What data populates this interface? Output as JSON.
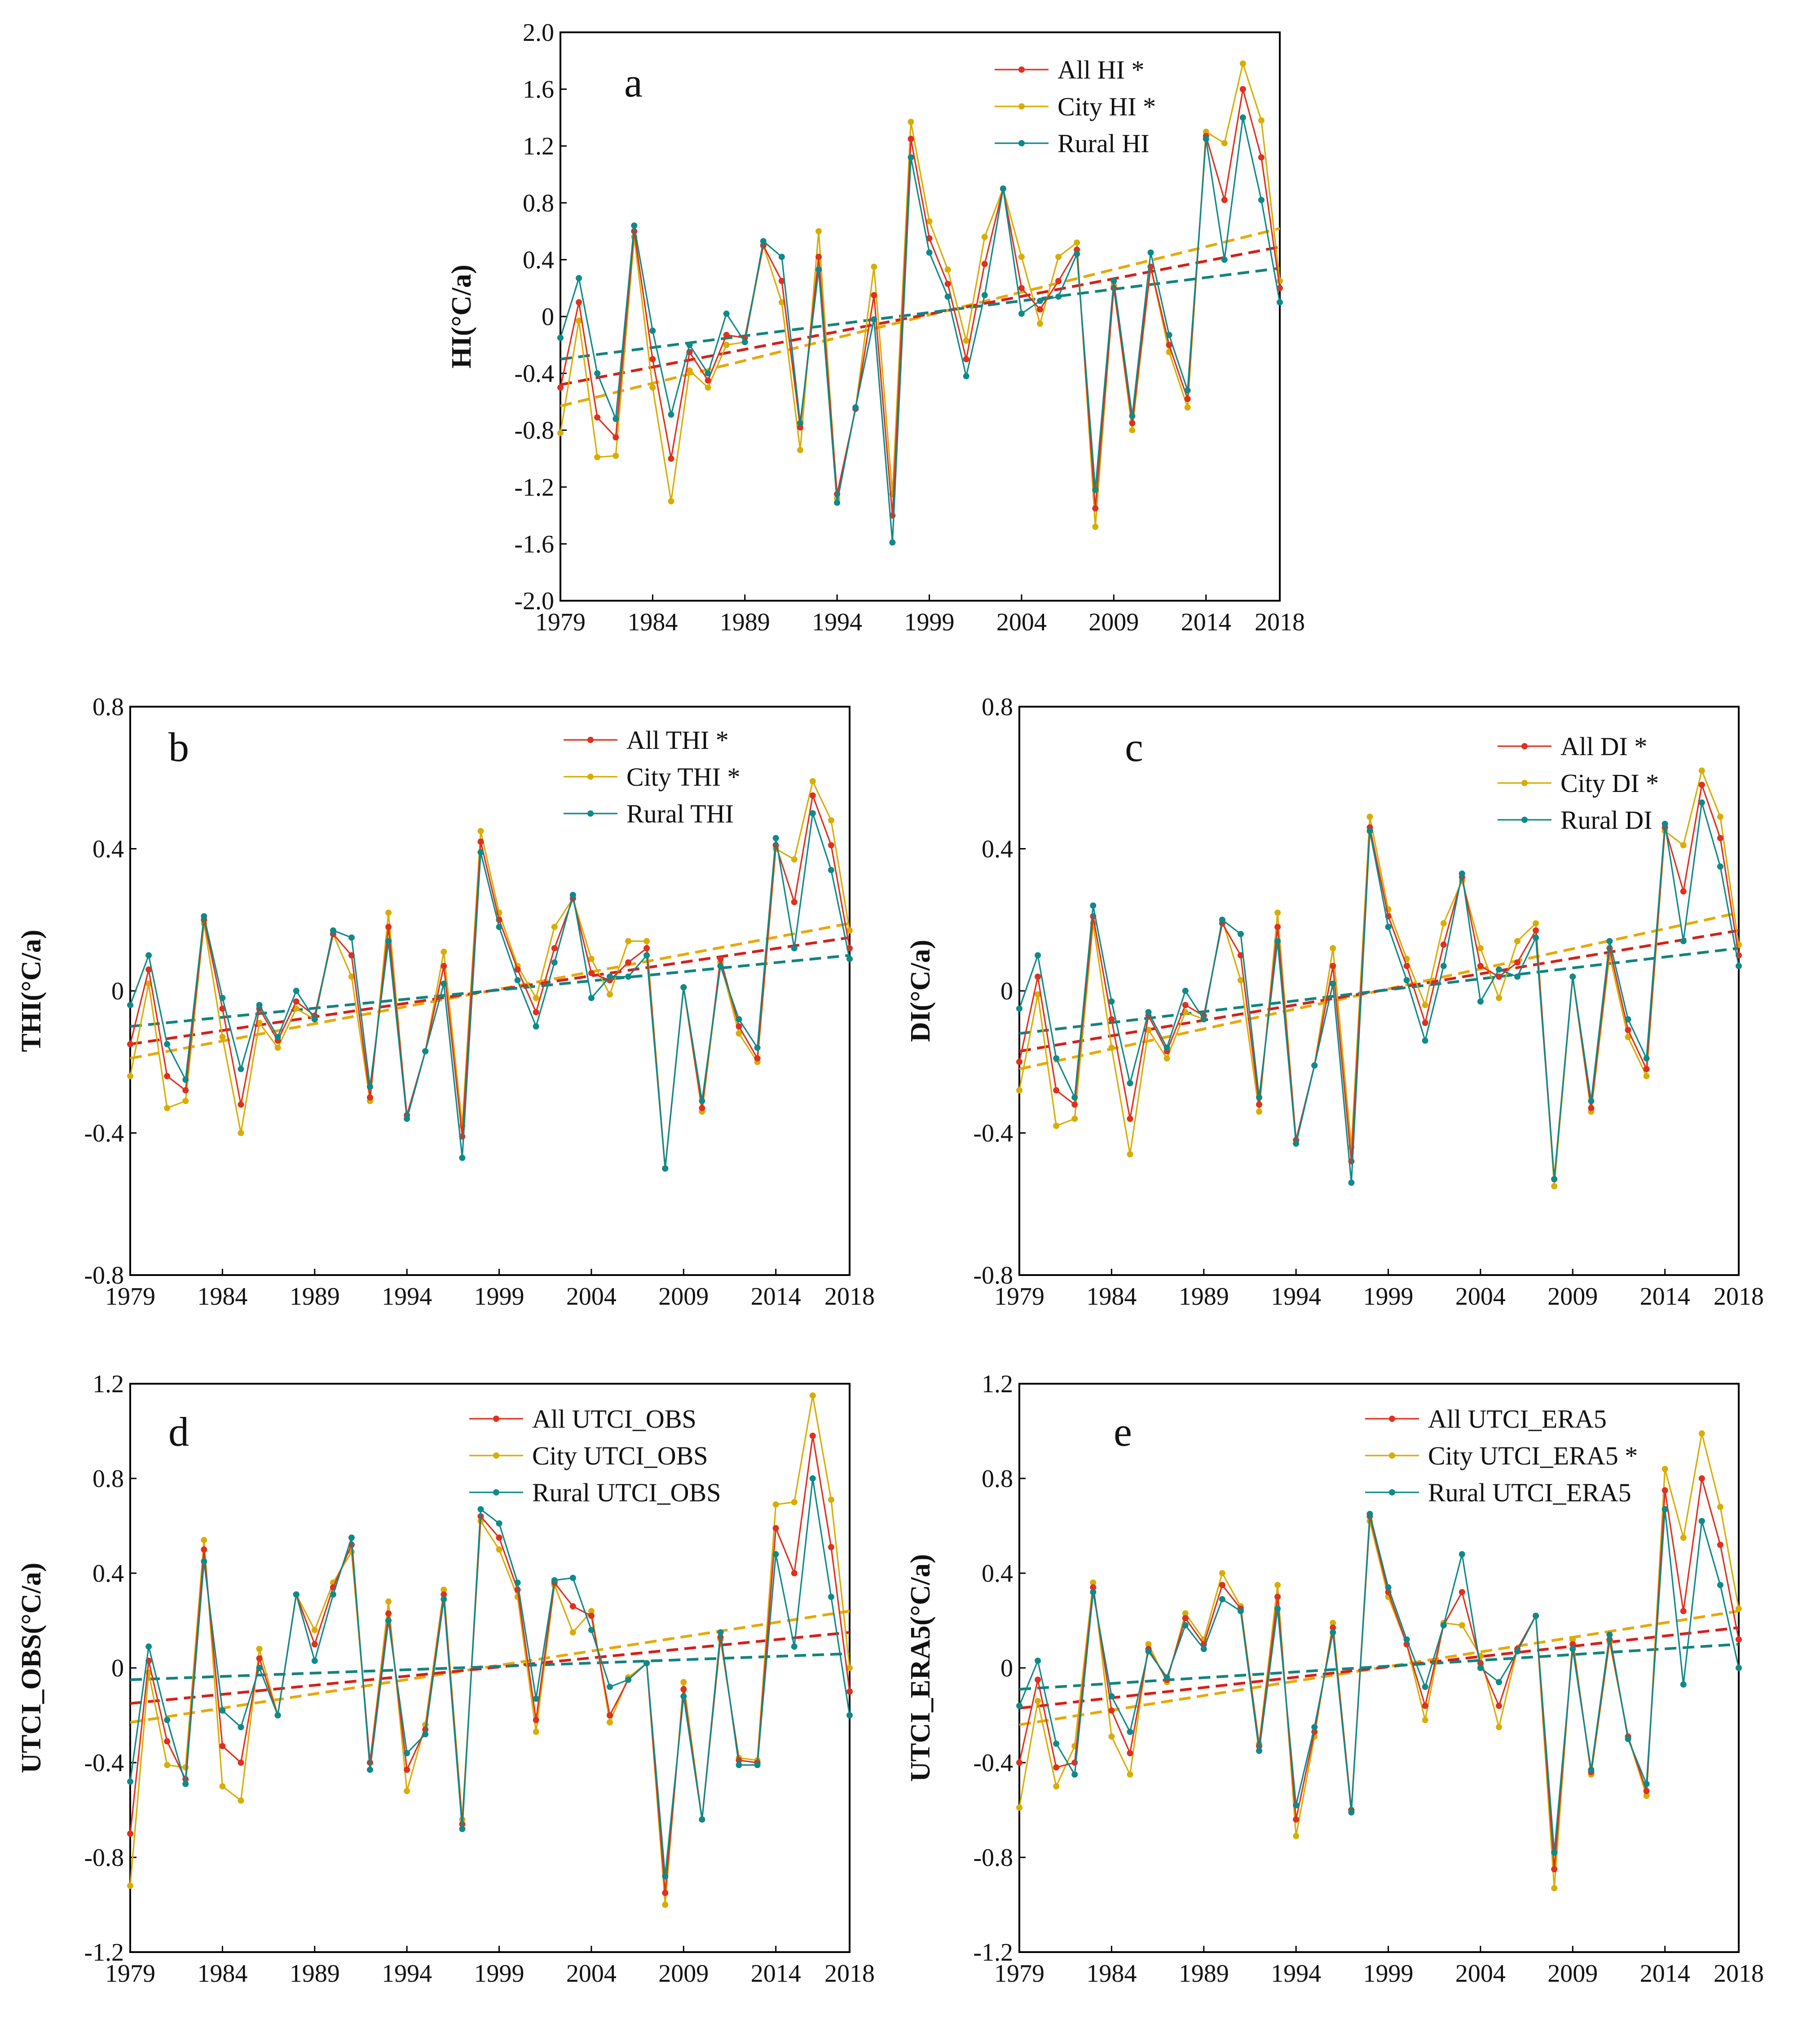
{
  "colors": {
    "all": "#e0301e",
    "city": "#d9ad00",
    "rural": "#0e8a8a",
    "frame": "#000000",
    "allTrend": "#d4201a",
    "cityTrend": "#e8a800",
    "ruralTrend": "#11847f"
  },
  "x_ticks": [
    "1979",
    "1984",
    "1989",
    "1994",
    "1999",
    "2004",
    "2009",
    "2014",
    "2018"
  ],
  "chart_data": [
    {
      "id": "a",
      "type": "line",
      "panel_label": "a",
      "ylabel": "HI(°C/a)",
      "x": [
        1979,
        1980,
        1981,
        1982,
        1983,
        1984,
        1985,
        1986,
        1987,
        1988,
        1989,
        1990,
        1991,
        1992,
        1993,
        1994,
        1995,
        1996,
        1997,
        1998,
        1999,
        2000,
        2001,
        2002,
        2003,
        2004,
        2005,
        2006,
        2007,
        2008,
        2009,
        2010,
        2011,
        2012,
        2013,
        2014,
        2015,
        2016,
        2017,
        2018
      ],
      "ylim": [
        -2.0,
        2.0
      ],
      "yticks": [
        "2.0",
        "1.6",
        "1.2",
        "0.8",
        "0.4",
        "0",
        "-0.4",
        "-0.8",
        "-1.2",
        "-1.6",
        "-2.0"
      ],
      "series": [
        {
          "name": "All HI *",
          "key": "all",
          "values": [
            -0.5,
            0.1,
            -0.71,
            -0.85,
            0.6,
            -0.3,
            -1.0,
            -0.25,
            -0.45,
            -0.13,
            -0.15,
            0.5,
            0.25,
            -0.78,
            0.42,
            -1.25,
            -0.65,
            0.15,
            -1.4,
            1.25,
            0.55,
            0.23,
            -0.3,
            0.37,
            0.9,
            0.2,
            0.05,
            0.25,
            0.47,
            -1.35,
            0.2,
            -0.75,
            0.35,
            -0.2,
            -0.58,
            1.27,
            0.82,
            1.6,
            1.12,
            0.2
          ],
          "trend": [
            -0.48,
            0.49
          ]
        },
        {
          "name": "City HI *",
          "key": "city",
          "values": [
            -0.82,
            -0.03,
            -0.99,
            -0.98,
            0.56,
            -0.5,
            -1.3,
            -0.38,
            -0.5,
            -0.2,
            -0.18,
            0.5,
            0.1,
            -0.94,
            0.6,
            -1.28,
            -0.65,
            0.35,
            -1.25,
            1.37,
            0.67,
            0.33,
            -0.17,
            0.56,
            0.9,
            0.42,
            -0.05,
            0.42,
            0.52,
            -1.48,
            0.22,
            -0.8,
            0.35,
            -0.25,
            -0.64,
            1.3,
            1.22,
            1.78,
            1.38,
            0.25
          ],
          "trend": [
            -0.63,
            0.62
          ]
        },
        {
          "name": "Rural HI",
          "key": "rural",
          "values": [
            -0.15,
            0.27,
            -0.4,
            -0.72,
            0.64,
            -0.1,
            -0.69,
            -0.2,
            -0.4,
            0.02,
            -0.18,
            0.53,
            0.42,
            -0.75,
            0.33,
            -1.31,
            -0.64,
            -0.02,
            -1.59,
            1.12,
            0.45,
            0.14,
            -0.42,
            0.15,
            0.9,
            0.02,
            0.11,
            0.14,
            0.44,
            -1.22,
            0.25,
            -0.7,
            0.45,
            -0.13,
            -0.52,
            1.25,
            0.4,
            1.4,
            0.82,
            0.1
          ],
          "trend": [
            -0.3,
            0.34
          ]
        }
      ]
    },
    {
      "id": "b",
      "type": "line",
      "panel_label": "b",
      "ylabel": "THI(°C/a)",
      "x": [
        1979,
        1980,
        1981,
        1982,
        1983,
        1984,
        1985,
        1986,
        1987,
        1988,
        1989,
        1990,
        1991,
        1992,
        1993,
        1994,
        1995,
        1996,
        1997,
        1998,
        1999,
        2000,
        2001,
        2002,
        2003,
        2004,
        2005,
        2006,
        2007,
        2008,
        2009,
        2010,
        2011,
        2012,
        2013,
        2014,
        2015,
        2016,
        2017,
        2018
      ],
      "ylim": [
        -0.8,
        0.8
      ],
      "yticks": [
        "0.8",
        "0.4",
        "0",
        "-0.4",
        "-0.8"
      ],
      "series": [
        {
          "name": "All THI *",
          "key": "all",
          "values": [
            -0.15,
            0.06,
            -0.24,
            -0.28,
            0.2,
            -0.05,
            -0.32,
            -0.05,
            -0.14,
            -0.03,
            -0.07,
            0.16,
            0.1,
            -0.3,
            0.18,
            -0.35,
            -0.17,
            0.07,
            -0.41,
            0.42,
            0.2,
            0.06,
            -0.06,
            0.12,
            0.26,
            0.05,
            0.03,
            0.08,
            0.12,
            -0.5,
            0.01,
            -0.33,
            0.09,
            -0.1,
            -0.19,
            0.41,
            0.25,
            0.55,
            0.41,
            0.12
          ],
          "trend": [
            -0.15,
            0.15
          ]
        },
        {
          "name": "City THI *",
          "key": "city",
          "values": [
            -0.24,
            0.02,
            -0.33,
            -0.31,
            0.19,
            -0.13,
            -0.4,
            -0.09,
            -0.16,
            -0.05,
            -0.08,
            0.16,
            0.04,
            -0.31,
            0.22,
            -0.36,
            -0.17,
            0.11,
            -0.38,
            0.45,
            0.22,
            0.07,
            -0.02,
            0.18,
            0.26,
            0.09,
            -0.01,
            0.14,
            0.14,
            -0.5,
            0.01,
            -0.34,
            0.08,
            -0.12,
            -0.2,
            0.4,
            0.37,
            0.59,
            0.48,
            0.17
          ],
          "trend": [
            -0.19,
            0.19
          ]
        },
        {
          "name": "Rural THI",
          "key": "rural",
          "values": [
            -0.04,
            0.1,
            -0.15,
            -0.25,
            0.21,
            -0.02,
            -0.22,
            -0.04,
            -0.13,
            0.0,
            -0.08,
            0.17,
            0.15,
            -0.27,
            0.14,
            -0.36,
            -0.17,
            0.02,
            -0.47,
            0.39,
            0.18,
            0.03,
            -0.1,
            0.08,
            0.27,
            -0.02,
            0.04,
            0.04,
            0.1,
            -0.5,
            0.01,
            -0.31,
            0.07,
            -0.08,
            -0.16,
            0.43,
            0.12,
            0.5,
            0.34,
            0.09
          ],
          "trend": [
            -0.1,
            0.1
          ]
        }
      ]
    },
    {
      "id": "c",
      "type": "line",
      "panel_label": "c",
      "ylabel": "DI(°C/a)",
      "x": [
        1979,
        1980,
        1981,
        1982,
        1983,
        1984,
        1985,
        1986,
        1987,
        1988,
        1989,
        1990,
        1991,
        1992,
        1993,
        1994,
        1995,
        1996,
        1997,
        1998,
        1999,
        2000,
        2001,
        2002,
        2003,
        2004,
        2005,
        2006,
        2007,
        2008,
        2009,
        2010,
        2011,
        2012,
        2013,
        2014,
        2015,
        2016,
        2017,
        2018
      ],
      "ylim": [
        -0.8,
        0.8
      ],
      "yticks": [
        "0.8",
        "0.4",
        "0",
        "-0.4",
        "-0.8"
      ],
      "series": [
        {
          "name": "All DI *",
          "key": "all",
          "values": [
            -0.2,
            0.04,
            -0.28,
            -0.32,
            0.21,
            -0.08,
            -0.36,
            -0.07,
            -0.17,
            -0.04,
            -0.07,
            0.19,
            0.1,
            -0.32,
            0.18,
            -0.42,
            -0.21,
            0.07,
            -0.48,
            0.46,
            0.21,
            0.07,
            -0.09,
            0.13,
            0.32,
            0.07,
            0.04,
            0.08,
            0.17,
            -0.53,
            0.04,
            -0.33,
            0.12,
            -0.11,
            -0.22,
            0.46,
            0.28,
            0.58,
            0.43,
            0.1
          ],
          "trend": [
            -0.17,
            0.17
          ]
        },
        {
          "name": "City DI *",
          "key": "city",
          "values": [
            -0.28,
            -0.01,
            -0.38,
            -0.36,
            0.19,
            -0.16,
            -0.46,
            -0.11,
            -0.19,
            -0.06,
            -0.08,
            0.2,
            0.03,
            -0.34,
            0.22,
            -0.42,
            -0.21,
            0.12,
            -0.44,
            0.49,
            0.23,
            0.09,
            -0.04,
            0.19,
            0.31,
            0.12,
            -0.02,
            0.14,
            0.19,
            -0.55,
            0.04,
            -0.34,
            0.1,
            -0.13,
            -0.24,
            0.45,
            0.41,
            0.62,
            0.49,
            0.13
          ],
          "trend": [
            -0.22,
            0.22
          ]
        },
        {
          "name": "Rural DI",
          "key": "rural",
          "values": [
            -0.05,
            0.1,
            -0.19,
            -0.3,
            0.24,
            -0.03,
            -0.26,
            -0.06,
            -0.16,
            0.0,
            -0.08,
            0.2,
            0.16,
            -0.3,
            0.14,
            -0.43,
            -0.21,
            0.02,
            -0.54,
            0.45,
            0.18,
            0.03,
            -0.14,
            0.07,
            0.33,
            -0.03,
            0.06,
            0.04,
            0.15,
            -0.53,
            0.04,
            -0.31,
            0.14,
            -0.08,
            -0.19,
            0.47,
            0.14,
            0.53,
            0.35,
            0.07
          ],
          "trend": [
            -0.12,
            0.12
          ]
        }
      ]
    },
    {
      "id": "d",
      "type": "line",
      "panel_label": "d",
      "ylabel": "UTCI_OBS(°C/a)",
      "x": [
        1979,
        1980,
        1981,
        1982,
        1983,
        1984,
        1985,
        1986,
        1987,
        1988,
        1989,
        1990,
        1991,
        1992,
        1993,
        1994,
        1995,
        1996,
        1997,
        1998,
        1999,
        2000,
        2001,
        2002,
        2003,
        2004,
        2005,
        2006,
        2007,
        2008,
        2009,
        2010,
        2011,
        2012,
        2013,
        2014,
        2015,
        2016,
        2017,
        2018
      ],
      "ylim": [
        -1.2,
        1.2
      ],
      "yticks": [
        "1.2",
        "0.8",
        "0.4",
        "0",
        "-0.4",
        "-0.8",
        "-1.2"
      ],
      "series": [
        {
          "name": "All UTCI_OBS",
          "key": "all",
          "values": [
            -0.7,
            0.03,
            -0.31,
            -0.47,
            0.5,
            -0.33,
            -0.4,
            0.04,
            -0.2,
            0.31,
            0.1,
            0.34,
            0.52,
            -0.4,
            0.23,
            -0.43,
            -0.26,
            0.31,
            -0.66,
            0.64,
            0.55,
            0.33,
            -0.22,
            0.36,
            0.26,
            0.22,
            -0.2,
            -0.05,
            0.02,
            -0.95,
            -0.09,
            -0.64,
            0.13,
            -0.39,
            -0.4,
            0.59,
            0.4,
            0.98,
            0.51,
            -0.1
          ],
          "trend": [
            -0.15,
            0.15
          ]
        },
        {
          "name": "City UTCI_OBS",
          "key": "city",
          "values": [
            -0.92,
            -0.02,
            -0.41,
            -0.42,
            0.54,
            -0.5,
            -0.56,
            0.08,
            -0.2,
            0.31,
            0.16,
            0.36,
            0.49,
            -0.4,
            0.28,
            -0.52,
            -0.24,
            0.33,
            -0.64,
            0.62,
            0.5,
            0.3,
            -0.27,
            0.35,
            0.15,
            0.24,
            -0.23,
            -0.04,
            0.02,
            -1.0,
            -0.06,
            -0.64,
            0.12,
            -0.38,
            -0.39,
            0.69,
            0.7,
            1.15,
            0.71,
            0.0
          ],
          "trend": [
            -0.23,
            0.24
          ]
        },
        {
          "name": "Rural UTCI_OBS",
          "key": "rural",
          "values": [
            -0.48,
            0.09,
            -0.22,
            -0.49,
            0.45,
            -0.18,
            -0.25,
            0.0,
            -0.2,
            0.31,
            0.03,
            0.31,
            0.55,
            -0.43,
            0.2,
            -0.36,
            -0.28,
            0.29,
            -0.68,
            0.67,
            0.61,
            0.36,
            -0.13,
            0.37,
            0.38,
            0.16,
            -0.08,
            -0.05,
            0.02,
            -0.88,
            -0.12,
            -0.64,
            0.15,
            -0.41,
            -0.41,
            0.48,
            0.09,
            0.8,
            0.3,
            -0.2
          ],
          "trend": [
            -0.05,
            0.06
          ]
        }
      ]
    },
    {
      "id": "e",
      "type": "line",
      "panel_label": "e",
      "ylabel": "UTCI_ERA5(°C/a)",
      "x": [
        1979,
        1980,
        1981,
        1982,
        1983,
        1984,
        1985,
        1986,
        1987,
        1988,
        1989,
        1990,
        1991,
        1992,
        1993,
        1994,
        1995,
        1996,
        1997,
        1998,
        1999,
        2000,
        2001,
        2002,
        2003,
        2004,
        2005,
        2006,
        2007,
        2008,
        2009,
        2010,
        2011,
        2012,
        2013,
        2014,
        2015,
        2016,
        2017,
        2018
      ],
      "ylim": [
        -1.2,
        1.2
      ],
      "yticks": [
        "1.2",
        "0.8",
        "0.4",
        "0",
        "-0.4",
        "-0.8",
        "-1.2"
      ],
      "series": [
        {
          "name": "All UTCI_ERA5",
          "key": "all",
          "values": [
            -0.4,
            -0.05,
            -0.42,
            -0.4,
            0.34,
            -0.18,
            -0.36,
            0.08,
            -0.05,
            0.21,
            0.1,
            0.35,
            0.25,
            -0.33,
            0.3,
            -0.64,
            -0.27,
            0.17,
            -0.6,
            0.64,
            0.32,
            0.1,
            -0.16,
            0.18,
            0.32,
            0.02,
            -0.16,
            0.08,
            0.22,
            -0.85,
            0.1,
            -0.44,
            0.12,
            -0.29,
            -0.52,
            0.75,
            0.24,
            0.8,
            0.52,
            0.12
          ],
          "trend": [
            -0.17,
            0.17
          ]
        },
        {
          "name": "City UTCI_ERA5 *",
          "key": "city",
          "values": [
            -0.59,
            -0.14,
            -0.5,
            -0.33,
            0.36,
            -0.29,
            -0.45,
            0.1,
            -0.06,
            0.23,
            0.12,
            0.4,
            0.26,
            -0.32,
            0.35,
            -0.71,
            -0.29,
            0.19,
            -0.6,
            0.62,
            0.3,
            0.1,
            -0.22,
            0.19,
            0.18,
            0.05,
            -0.25,
            0.08,
            0.22,
            -0.93,
            0.12,
            -0.45,
            0.11,
            -0.29,
            -0.54,
            0.84,
            0.55,
            0.99,
            0.68,
            0.25
          ],
          "trend": [
            -0.24,
            0.24
          ]
        },
        {
          "name": "Rural UTCI_ERA5",
          "key": "rural",
          "values": [
            -0.16,
            0.03,
            -0.32,
            -0.45,
            0.32,
            -0.12,
            -0.27,
            0.07,
            -0.04,
            0.18,
            0.08,
            0.29,
            0.24,
            -0.35,
            0.25,
            -0.58,
            -0.25,
            0.15,
            -0.61,
            0.65,
            0.34,
            0.12,
            -0.08,
            0.18,
            0.48,
            0.0,
            -0.06,
            0.07,
            0.22,
            -0.78,
            0.08,
            -0.43,
            0.14,
            -0.3,
            -0.49,
            0.67,
            -0.07,
            0.62,
            0.35,
            0.0
          ],
          "trend": [
            -0.09,
            0.1
          ]
        }
      ]
    }
  ]
}
